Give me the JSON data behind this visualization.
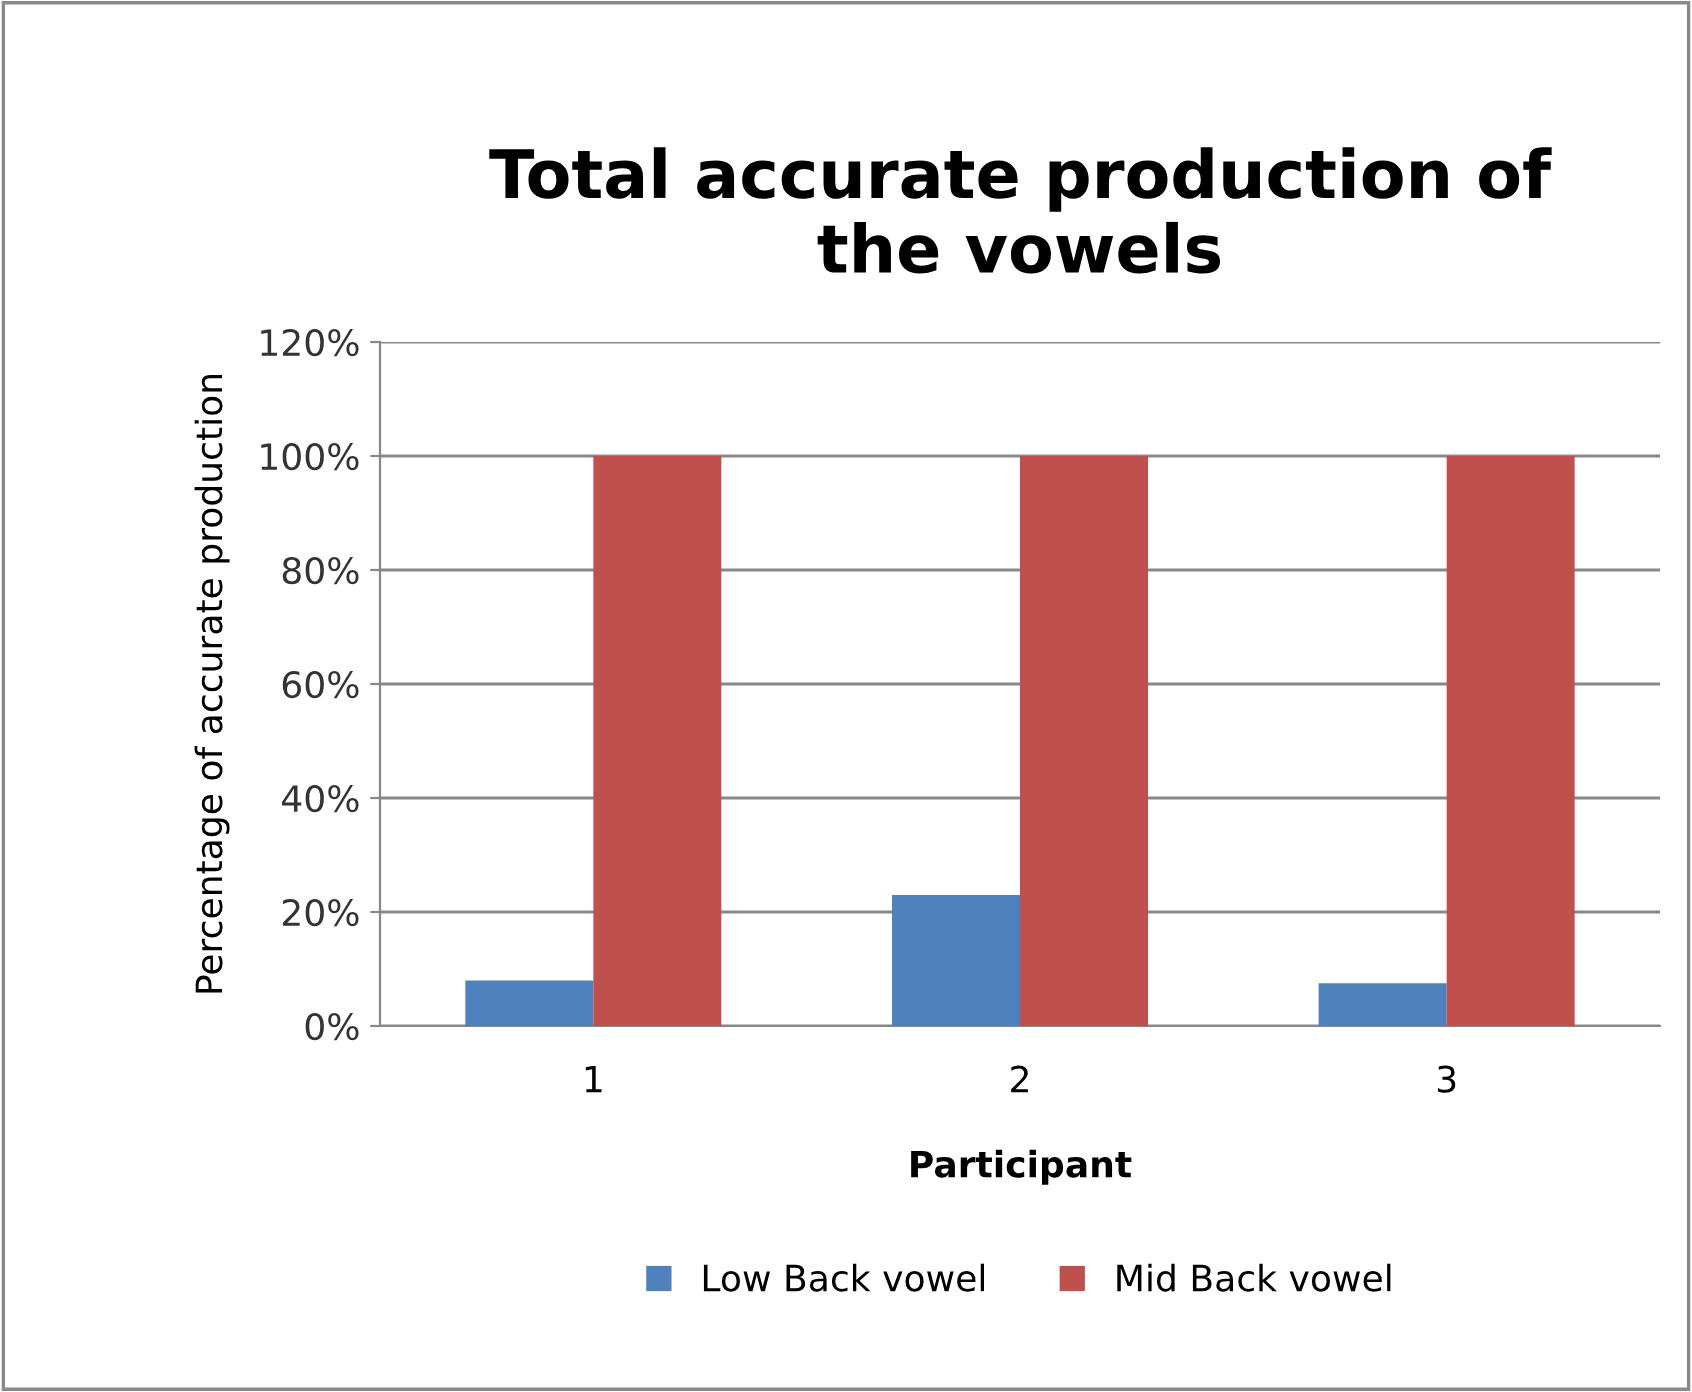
{
  "chart_data": {
    "type": "bar",
    "title": "Total accurate production of\nthe vowels",
    "xlabel": "Participant",
    "ylabel": "Percentage of accurate production",
    "categories": [
      "1",
      "2",
      "3"
    ],
    "series": [
      {
        "name": "Low Back vowel",
        "color": "#4f81bd",
        "values": [
          8,
          23,
          7.5
        ]
      },
      {
        "name": "Mid Back vowel",
        "color": "#c0504d",
        "values": [
          100,
          100,
          100
        ]
      }
    ],
    "ylim": [
      0,
      120
    ],
    "yticks": [
      {
        "value": 0,
        "label": "0%"
      },
      {
        "value": 20,
        "label": "20%"
      },
      {
        "value": 40,
        "label": "40%"
      },
      {
        "value": 60,
        "label": "60%"
      },
      {
        "value": 80,
        "label": "80%"
      },
      {
        "value": 100,
        "label": "100%"
      },
      {
        "value": 120,
        "label": "120%"
      }
    ],
    "grid": "y",
    "legend": "bottom"
  }
}
